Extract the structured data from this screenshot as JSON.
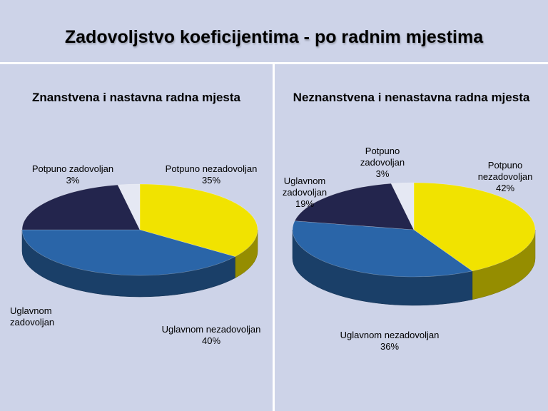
{
  "title": "Zadovoljstvo koeficijentima - po radnim mjestima",
  "colors": {
    "Potpuno nezadovoljan": "#f1e300",
    "Uglavnom nezadovoljan": "#2a65a8",
    "Uglavnom zadovoljan": "#23254d",
    "Potpuno zadovoljan": "#e5e8f3"
  },
  "chart_data": [
    {
      "type": "pie",
      "title": "Znanstvena i nastavna radna mjesta",
      "slices": [
        {
          "name": "Potpuno nezadovoljan",
          "label": [
            "Potpuno nezadovoljan"
          ],
          "value": 35,
          "value_label": "35%"
        },
        {
          "name": "Uglavnom nezadovoljan",
          "label": [
            "Uglavnom nezadovoljan"
          ],
          "value": 40,
          "value_label": "40%"
        },
        {
          "name": "Uglavnom zadovoljan",
          "label": [
            "Uglavnom",
            "zadovoljan"
          ],
          "value": 22,
          "value_label": ""
        },
        {
          "name": "Potpuno zadovoljan",
          "label": [
            "Potpuno zadovoljan"
          ],
          "value": 3,
          "value_label": "3%"
        }
      ]
    },
    {
      "type": "pie",
      "title": "Neznanstvena i nenastavna radna mjesta",
      "slices": [
        {
          "name": "Potpuno nezadovoljan",
          "label": [
            "Potpuno",
            "nezadovoljan"
          ],
          "value": 42,
          "value_label": "42%"
        },
        {
          "name": "Uglavnom nezadovoljan",
          "label": [
            "Uglavnom nezadovoljan"
          ],
          "value": 36,
          "value_label": "36%"
        },
        {
          "name": "Uglavnom zadovoljan",
          "label": [
            "Uglavnom",
            "zadovoljan"
          ],
          "value": 19,
          "value_label": "19%"
        },
        {
          "name": "Potpuno zadovoljan",
          "label": [
            "Potpuno",
            "zadovoljan"
          ],
          "value": 3,
          "value_label": "3%"
        }
      ]
    }
  ]
}
